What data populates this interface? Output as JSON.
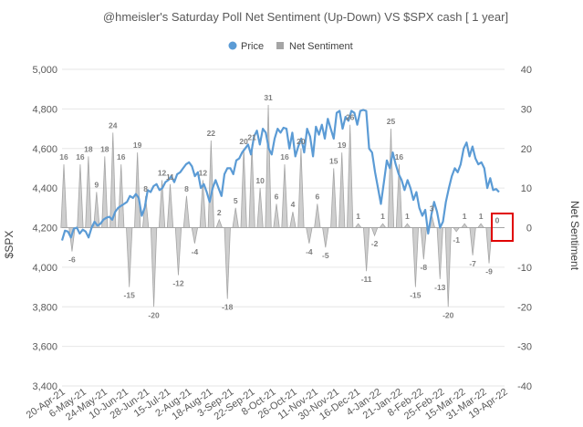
{
  "chart_data": {
    "type": "line+area",
    "title": "@hmeisler's Saturday Poll Net Sentiment (Up-Down) VS $SPX  cash [ 1 year]",
    "legend": [
      {
        "name": "Price",
        "color": "#5b9bd5",
        "marker": "circle"
      },
      {
        "name": "Net Sentiment",
        "color": "#a5a5a5",
        "marker": "square"
      }
    ],
    "legend_position": "top",
    "y_left": {
      "label": "$SPX",
      "range": [
        3400,
        5000
      ],
      "ticks": [
        "3,400",
        "3,600",
        "3,800",
        "4,000",
        "4,200",
        "4,400",
        "4,600",
        "4,800",
        "5,000"
      ]
    },
    "y_right": {
      "label": "Net Sentiment",
      "range": [
        -40,
        40
      ],
      "ticks": [
        "-40",
        "-30",
        "-20",
        "-10",
        "0",
        "10",
        "20",
        "30",
        "40"
      ]
    },
    "x_labels": [
      "20-Apr-21",
      "6-May-21",
      "24-May-21",
      "10-Jun-21",
      "28-Jun-21",
      "15-Jul-21",
      "2-Aug-21",
      "18-Aug-21",
      "3-Sep-21",
      "22-Sep-21",
      "8-Oct-21",
      "26-Oct-21",
      "11-Nov-21",
      "30-Nov-21",
      "16-Dec-21",
      "4-Jan-22",
      "21-Jan-22",
      "8-Feb-22",
      "25-Feb-22",
      "15-Mar-22",
      "31-Mar-22",
      "19-Apr-22"
    ],
    "net_sentiment": [
      16,
      -6,
      16,
      18,
      9,
      18,
      24,
      16,
      -15,
      19,
      8,
      -20,
      12,
      11,
      -12,
      8,
      -4,
      12,
      22,
      2,
      -18,
      5,
      20,
      21,
      10,
      31,
      6,
      16,
      4,
      20,
      -4,
      6,
      -5,
      15,
      19,
      26,
      1,
      -11,
      -2,
      1,
      25,
      16,
      1,
      -15,
      -8,
      3,
      -13,
      -20,
      -1,
      1,
      -7,
      1,
      -9,
      0
    ],
    "price": [
      4135,
      4185,
      4180,
      4150,
      4195,
      4200,
      4170,
      4190,
      4180,
      4150,
      4200,
      4230,
      4210,
      4220,
      4240,
      4250,
      4255,
      4240,
      4280,
      4300,
      4310,
      4320,
      4330,
      4360,
      4350,
      4370,
      4350,
      4260,
      4300,
      4390,
      4380,
      4410,
      4420,
      4390,
      4400,
      4430,
      4440,
      4460,
      4430,
      4470,
      4480,
      4500,
      4520,
      4530,
      4510,
      4460,
      4480,
      4400,
      4420,
      4380,
      4330,
      4400,
      4440,
      4400,
      4360,
      4470,
      4500,
      4500,
      4470,
      4540,
      4550,
      4580,
      4600,
      4620,
      4570,
      4660,
      4690,
      4620,
      4700,
      4680,
      4600,
      4570,
      4650,
      4700,
      4680,
      4705,
      4700,
      4600,
      4680,
      4560,
      4610,
      4650,
      4580,
      4700,
      4660,
      4560,
      4710,
      4670,
      4720,
      4650,
      4750,
      4700,
      4650,
      4780,
      4790,
      4700,
      4760,
      4740,
      4790,
      4780,
      4720,
      4790,
      4795,
      4790,
      4600,
      4580,
      4480,
      4400,
      4320,
      4430,
      4540,
      4500,
      4580,
      4520,
      4470,
      4440,
      4390,
      4440,
      4400,
      4340,
      4380,
      4300,
      4260,
      4290,
      4170,
      4260,
      4330,
      4280,
      4200,
      4230,
      4330,
      4400,
      4460,
      4500,
      4480,
      4520,
      4600,
      4630,
      4560,
      4610,
      4550,
      4520,
      4530,
      4500,
      4400,
      4450,
      4390,
      4395,
      4380
    ],
    "highlighted_point": {
      "label": "19-Apr-22",
      "net_sentiment": 0,
      "box_color": "#e00000"
    }
  }
}
